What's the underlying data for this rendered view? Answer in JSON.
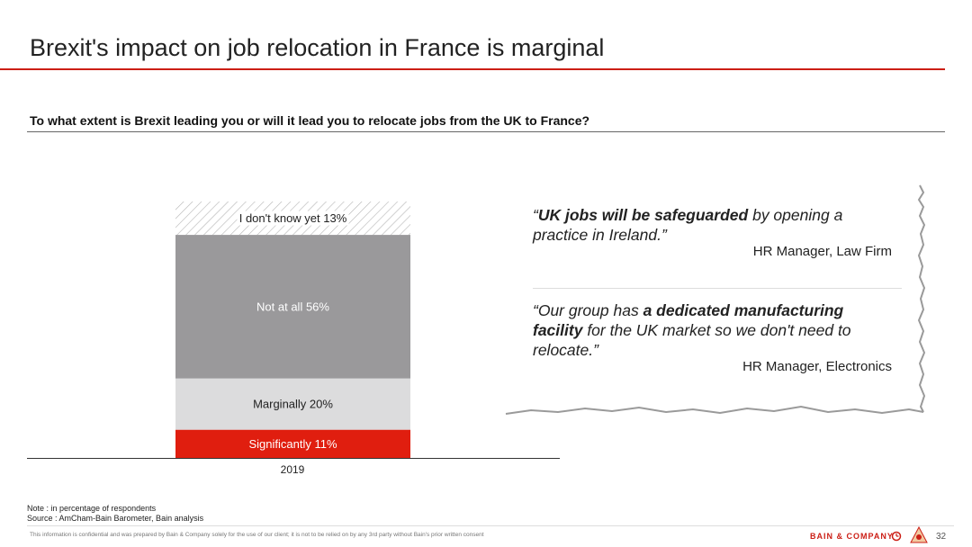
{
  "header": {
    "title": "Brexit's impact on job relocation in France is marginal",
    "question": "To what extent is Brexit leading you or will it lead you to relocate jobs from the UK to France?"
  },
  "chart_data": {
    "type": "bar",
    "stacked": true,
    "categories": [
      "2019"
    ],
    "series": [
      {
        "name": "Significantly",
        "values": [
          11
        ],
        "label": "Significantly 11%",
        "color": "#e01e0f"
      },
      {
        "name": "Marginally",
        "values": [
          20
        ],
        "label": "Marginally 20%",
        "color": "#dcdcdd"
      },
      {
        "name": "Not at all",
        "values": [
          56
        ],
        "label": "Not at all 56%",
        "color": "#9a999b"
      },
      {
        "name": "I don't know yet",
        "values": [
          13
        ],
        "label": "I don't know yet 13%",
        "color": "hatched"
      }
    ],
    "ylim": [
      0,
      100
    ],
    "grid": false,
    "legend": "none"
  },
  "quotes": [
    {
      "open": "“",
      "bold": "UK jobs will be safeguarded",
      "rest": " by opening a practice in Ireland.”",
      "attribution": "HR Manager, Law Firm"
    },
    {
      "open": "“Our group has ",
      "bold": "a dedicated manufacturing facility",
      "rest": " for the UK market so we don't need to relocate.”",
      "attribution": "HR Manager, Electronics"
    }
  ],
  "notes": {
    "note": "Note : in percentage of respondents",
    "source": "Source : AmCham-Bain Barometer, Bain analysis"
  },
  "footer": {
    "disclaimer": "This information is confidential and was prepared by Bain & Company solely for the use of our client; it is not to be relied on by any 3rd party without Bain's prior written consent",
    "brand": "BAIN & COMPANY",
    "page_number": "32",
    "accent_color": "#cc1f16"
  }
}
